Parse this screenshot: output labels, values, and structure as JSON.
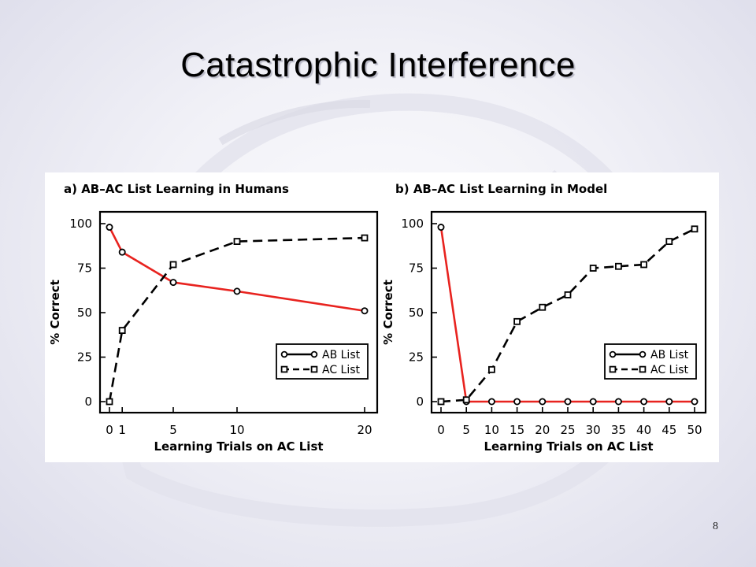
{
  "slide": {
    "title": "Catastrophic Interference",
    "page_number": "8"
  },
  "colors": {
    "ab_series": "#e8231f",
    "ac_series": "#000000",
    "axis": "#000000"
  },
  "chart_data": [
    {
      "type": "line",
      "title": "a) AB–AC List Learning in Humans",
      "xlabel": "Learning Trials on AC List",
      "ylabel": "% Correct",
      "xticks": [
        "0",
        "1",
        "5",
        "10",
        "20"
      ],
      "yticks": [
        "0",
        "25",
        "50",
        "75",
        "100"
      ],
      "ylim": [
        0,
        100
      ],
      "x_positions": [
        0,
        1,
        5,
        10,
        20
      ],
      "series": [
        {
          "name": "AB List",
          "values": [
            98,
            84,
            67,
            62,
            51
          ],
          "style": "solid",
          "marker": "circle"
        },
        {
          "name": "AC List",
          "values": [
            0,
            40,
            77,
            90,
            92
          ],
          "style": "dashed",
          "marker": "square"
        }
      ],
      "legend": "lower-right",
      "grid": false
    },
    {
      "type": "line",
      "title": "b) AB–AC List Learning in Model",
      "xlabel": "Learning Trials on AC List",
      "ylabel": "% Correct",
      "xticks": [
        "0",
        "5",
        "10",
        "15",
        "20",
        "25",
        "30",
        "35",
        "40",
        "45",
        "50"
      ],
      "yticks": [
        "0",
        "25",
        "50",
        "75",
        "100"
      ],
      "ylim": [
        0,
        100
      ],
      "x_positions": [
        0,
        5,
        10,
        15,
        20,
        25,
        30,
        35,
        40,
        45,
        50
      ],
      "series": [
        {
          "name": "AB List",
          "values": [
            98,
            0,
            0,
            0,
            0,
            0,
            0,
            0,
            0,
            0,
            0
          ],
          "style": "solid",
          "marker": "circle"
        },
        {
          "name": "AC List",
          "values": [
            0,
            1,
            18,
            45,
            53,
            60,
            75,
            76,
            77,
            90,
            97
          ],
          "style": "dashed",
          "marker": "square"
        }
      ],
      "legend": "lower-right",
      "grid": false
    }
  ]
}
